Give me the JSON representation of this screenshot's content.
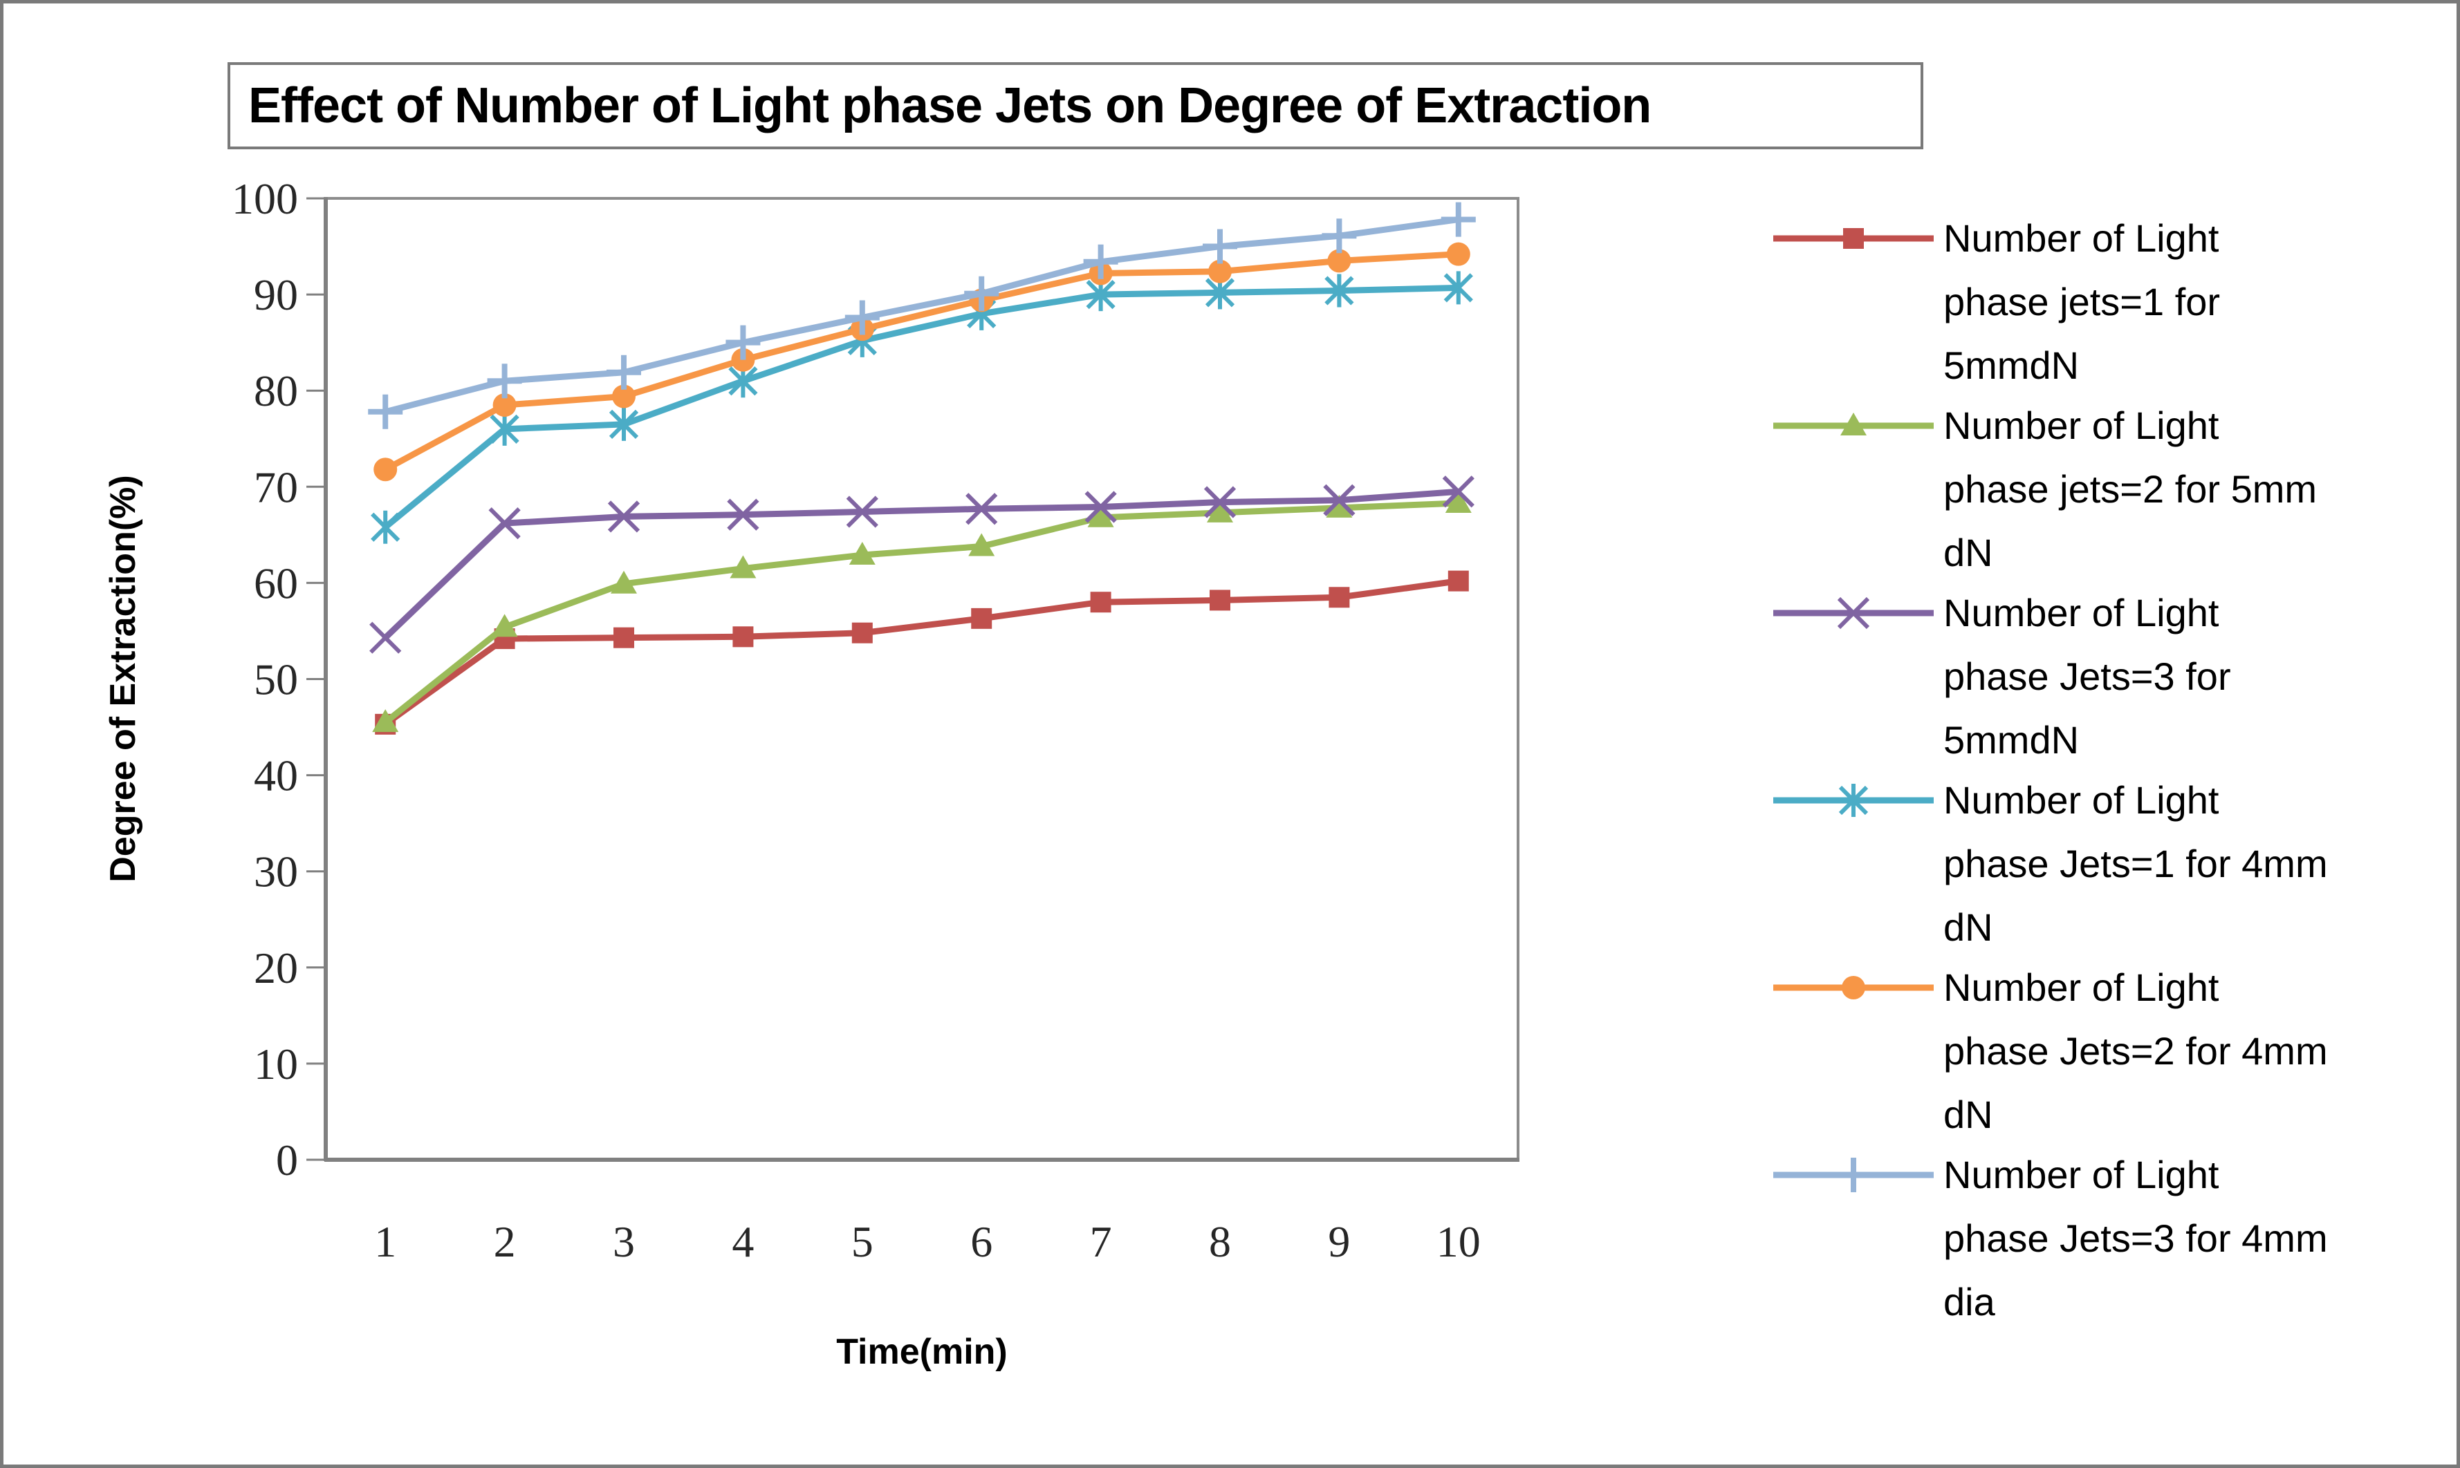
{
  "figure": {
    "title": "Effect of Number of Light phase Jets on Degree of Extraction"
  },
  "chart_data": {
    "type": "line",
    "title": "Effect of Number of Light phase Jets on Degree of Extraction",
    "xlabel": "Time(min)",
    "ylabel": "Degree of  Extraction(%)",
    "x": [
      1,
      2,
      3,
      4,
      5,
      6,
      7,
      8,
      9,
      10
    ],
    "x_tick_labels": [
      "1",
      "2",
      "3",
      "4",
      "5",
      "6",
      "7",
      "8",
      "9",
      "10"
    ],
    "y_ticks": [
      0,
      10,
      20,
      30,
      40,
      50,
      60,
      70,
      80,
      90,
      100
    ],
    "y_tick_labels": [
      "0",
      "10",
      "20",
      "30",
      "40",
      "50",
      "60",
      "70",
      "80",
      "90",
      "100"
    ],
    "ylim": [
      0,
      100
    ],
    "grid": false,
    "legend_position": "right",
    "series": [
      {
        "name": "Number of Light phase jets=1 for 5mmdN",
        "legend_lines": [
          "Number of Light",
          "phase jets=1 for",
          "5mmdN"
        ],
        "marker": "square",
        "color": "#C0504D",
        "values": [
          45.3,
          54.2,
          54.3,
          54.4,
          54.8,
          56.3,
          58.0,
          58.2,
          58.5,
          60.2
        ]
      },
      {
        "name": "Number of Light phase jets=2 for 5mm dN",
        "legend_lines": [
          "Number of Light",
          "phase jets=2 for 5mm",
          "dN"
        ],
        "marker": "triangle",
        "color": "#9BBB59",
        "values": [
          45.5,
          55.4,
          59.9,
          61.5,
          62.9,
          63.8,
          66.8,
          67.3,
          67.8,
          68.3
        ]
      },
      {
        "name": "Number of Light phase Jets=3 for 5mmdN",
        "legend_lines": [
          "Number of Light",
          "phase Jets=3 for",
          "5mmdN"
        ],
        "marker": "x",
        "color": "#8064A2",
        "values": [
          54.3,
          66.2,
          66.9,
          67.1,
          67.4,
          67.7,
          67.9,
          68.4,
          68.6,
          69.5
        ]
      },
      {
        "name": "Number of Light phase Jets=1 for 4mm dN",
        "legend_lines": [
          "Number of Light",
          "phase Jets=1 for 4mm",
          "dN"
        ],
        "marker": "asterisk",
        "color": "#4BACC6",
        "values": [
          65.8,
          76.0,
          76.5,
          81.0,
          85.2,
          88.0,
          90.0,
          90.2,
          90.4,
          90.7
        ]
      },
      {
        "name": "Number of Light phase Jets=2 for 4mm dN",
        "legend_lines": [
          "Number of Light",
          "phase Jets=2 for 4mm",
          "dN"
        ],
        "marker": "circle",
        "color": "#F79646",
        "values": [
          71.8,
          78.5,
          79.4,
          83.2,
          86.4,
          89.4,
          92.2,
          92.4,
          93.5,
          94.2
        ]
      },
      {
        "name": "Number of Light phase Jets=3 for 4mm dia",
        "legend_lines": [
          "Number of Light",
          "phase Jets=3 for 4mm",
          "dia"
        ],
        "marker": "plus",
        "color": "#95B3D7",
        "values": [
          77.8,
          81.0,
          81.9,
          85.0,
          87.6,
          90.1,
          93.4,
          95.0,
          96.1,
          97.8
        ]
      }
    ]
  }
}
